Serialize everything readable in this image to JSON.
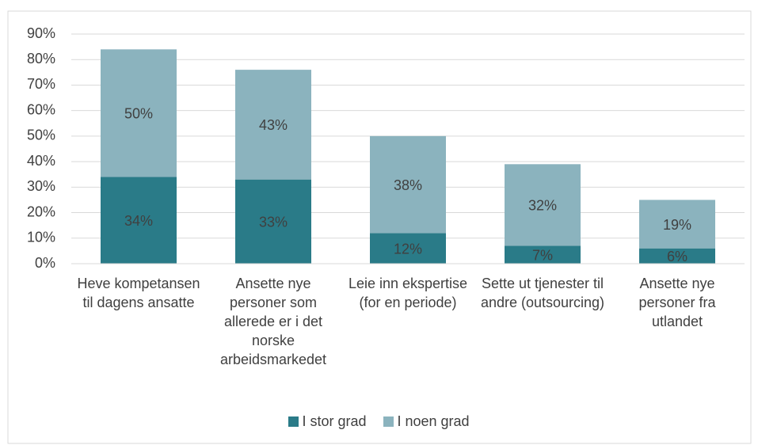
{
  "chart_data": {
    "type": "stacked_bar",
    "categories": [
      "Heve kompetansen til dagens ansatte",
      "Ansette nye personer som allerede er i det norske arbeidsmarkedet",
      "Leie inn ekspertise (for en periode)",
      "Sette ut tjenester til andre (outsourcing)",
      "Ansette nye personer fra utlandet"
    ],
    "series": [
      {
        "name": "I stor grad",
        "color": "#2a7b88",
        "values": [
          34,
          33,
          12,
          7,
          6
        ],
        "value_labels": [
          "34%",
          "33%",
          "12%",
          "7%",
          "6%"
        ]
      },
      {
        "name": "I noen grad",
        "color": "#8bb3be",
        "values": [
          50,
          43,
          38,
          32,
          19
        ],
        "value_labels": [
          "50%",
          "43%",
          "38%",
          "32%",
          "19%"
        ]
      }
    ],
    "ylim": [
      0,
      90
    ],
    "yticks": [
      {
        "value": 0,
        "label": "0%"
      },
      {
        "value": 10,
        "label": "10%"
      },
      {
        "value": 20,
        "label": "20%"
      },
      {
        "value": 30,
        "label": "30%"
      },
      {
        "value": 40,
        "label": "40%"
      },
      {
        "value": 50,
        "label": "50%"
      },
      {
        "value": 60,
        "label": "60%"
      },
      {
        "value": 70,
        "label": "70%"
      },
      {
        "value": 80,
        "label": "80%"
      },
      {
        "value": 90,
        "label": "90%"
      }
    ],
    "grid": true,
    "legend": "bottom"
  }
}
